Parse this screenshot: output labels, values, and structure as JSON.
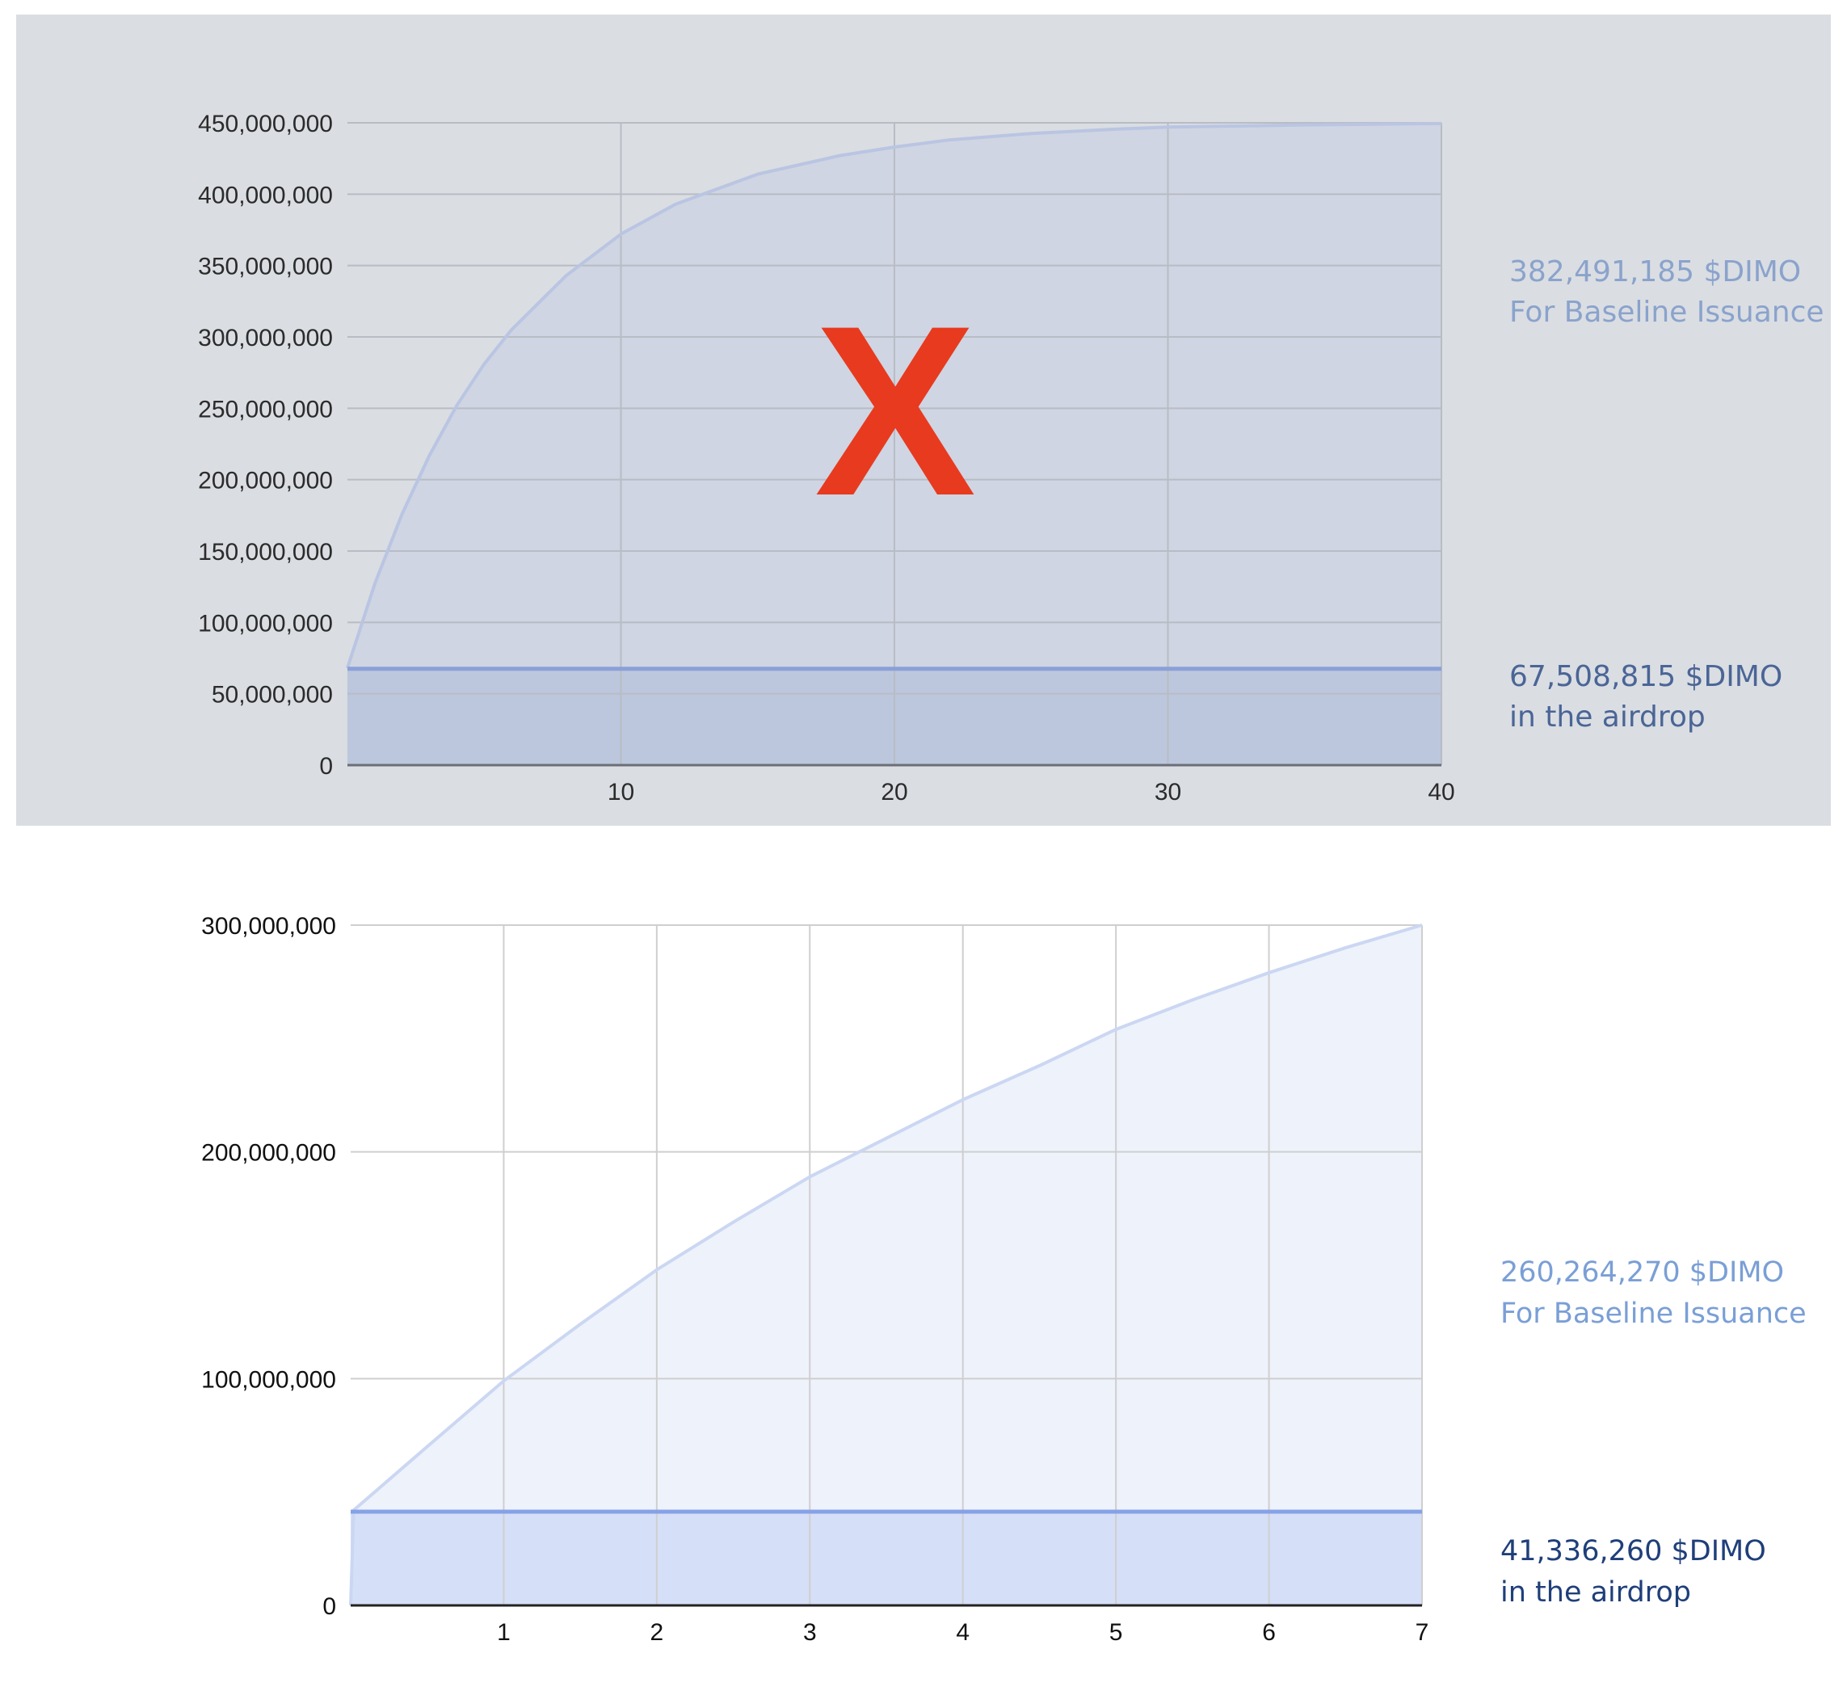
{
  "chart_data": [
    {
      "type": "area",
      "x_ticks": [
        10,
        20,
        30,
        40
      ],
      "xlim": [
        0,
        40
      ],
      "ylim": [
        0,
        450000000
      ],
      "y_ticks": [
        0,
        50000000,
        100000000,
        150000000,
        200000000,
        250000000,
        300000000,
        350000000,
        400000000,
        450000000
      ],
      "y_tick_labels": [
        "0",
        "50,000,000",
        "100,000,000",
        "150,000,000",
        "200,000,000",
        "250,000,000",
        "300,000,000",
        "350,000,000",
        "400,000,000",
        "450,000,000"
      ],
      "grid": true,
      "crossed_out": true,
      "cross_mark": "X",
      "series": [
        {
          "x": [
            0,
            1,
            2,
            3,
            4,
            5,
            6,
            8,
            10,
            12,
            15,
            18,
            20,
            22,
            25,
            28,
            30,
            35,
            40
          ],
          "values": [
            68000000,
            127000000,
            176000000,
            217000000,
            252000000,
            281000000,
            305000000,
            343000000,
            372000000,
            393000000,
            414000000,
            427000000,
            433000000,
            438000000,
            442500000,
            445500000,
            447000000,
            448500000,
            449500000
          ],
          "color": "#b9c5e2"
        },
        {
          "x": [
            0,
            40
          ],
          "values": [
            67508815,
            67508815
          ],
          "color": "#8aa0d8"
        }
      ],
      "annotations": [
        {
          "lines": [
            "382,491,185 $DIMO",
            "For Baseline Issuance"
          ]
        },
        {
          "lines": [
            "67,508,815 $DIMO",
            "in the airdrop"
          ]
        }
      ]
    },
    {
      "type": "area",
      "x_ticks": [
        1,
        2,
        3,
        4,
        5,
        6,
        7
      ],
      "xlim": [
        0,
        7
      ],
      "ylim": [
        0,
        300000000
      ],
      "y_ticks": [
        0,
        100000000,
        200000000,
        300000000
      ],
      "y_tick_labels": [
        "0",
        "100,000,000",
        "200,000,000",
        "300,000,000"
      ],
      "grid": true,
      "series": [
        {
          "x": [
            0,
            0.02,
            0.5,
            1,
            1.5,
            2,
            2.5,
            3,
            3.5,
            4,
            4.5,
            5,
            5.5,
            6,
            6.5,
            7
          ],
          "values": [
            0,
            42000000,
            70000000,
            99000000,
            124000000,
            148000000,
            169000000,
            189000000,
            206000000,
            223000000,
            238000000,
            254000000,
            267000000,
            279000000,
            290000000,
            300000000
          ],
          "color": "#cbd7f2"
        },
        {
          "x": [
            0,
            7
          ],
          "values": [
            41336260,
            41336260
          ],
          "color": "#86a2e6"
        }
      ],
      "annotations": [
        {
          "lines": [
            "260,264,270 $DIMO",
            "For Baseline Issuance"
          ]
        },
        {
          "lines": [
            "41,336,260 $DIMO",
            "in the airdrop"
          ]
        }
      ]
    }
  ]
}
